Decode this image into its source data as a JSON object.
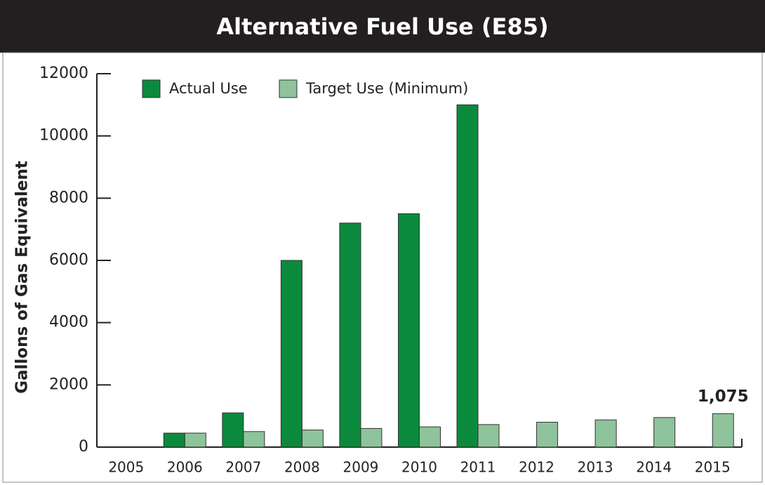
{
  "chart_data": {
    "type": "bar",
    "title": "Alternative Fuel Use (E85)",
    "y_label": "Gallons of Gas Equivalent",
    "categories": [
      "2005",
      "2006",
      "2007",
      "2008",
      "2009",
      "2010",
      "2011",
      "2012",
      "2013",
      "2014",
      "2015"
    ],
    "series": [
      {
        "name": "Actual Use",
        "color": "#0b8a3d",
        "values": [
          null,
          450,
          1100,
          6000,
          7200,
          7500,
          11000,
          null,
          null,
          null,
          null
        ]
      },
      {
        "name": "Target Use (Minimum)",
        "color": "#8fc39b",
        "values": [
          null,
          450,
          500,
          550,
          600,
          650,
          725,
          800,
          875,
          950,
          1075
        ],
        "value_labels": [
          null,
          null,
          null,
          null,
          null,
          null,
          null,
          null,
          null,
          null,
          "1,075"
        ]
      }
    ],
    "ylim": [
      0,
      12000
    ],
    "yticks": [
      0,
      2000,
      4000,
      6000,
      8000,
      10000,
      12000
    ],
    "legend": "top-left"
  }
}
